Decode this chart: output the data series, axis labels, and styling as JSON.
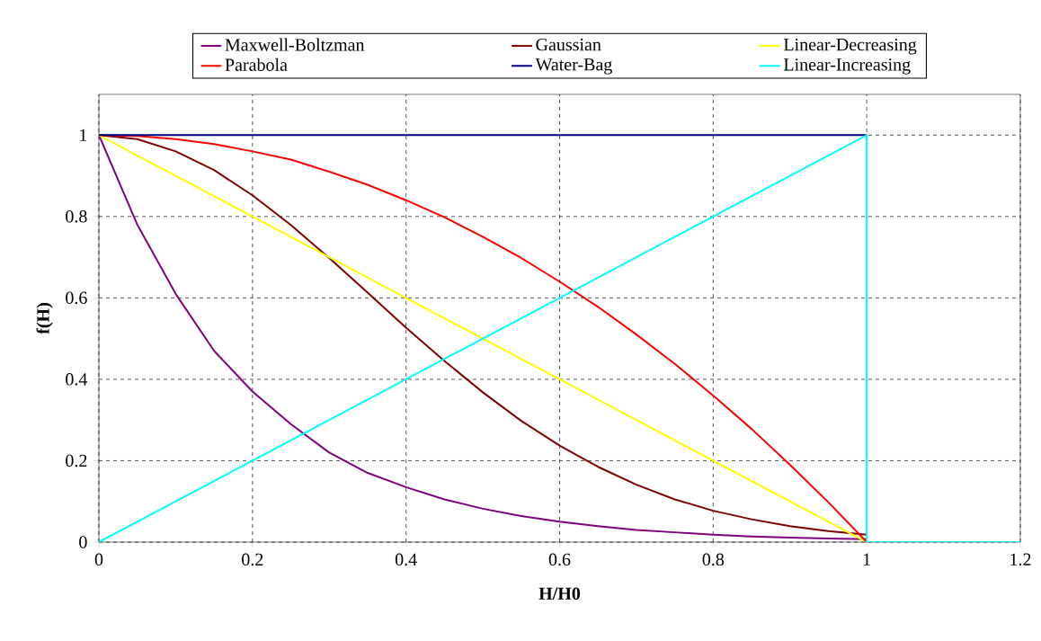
{
  "chart_data": {
    "type": "line",
    "xlabel": "H/H0",
    "ylabel": "f(H)",
    "xlim": [
      0,
      1.2
    ],
    "ylim": [
      0,
      1.1
    ],
    "xticks": [
      0,
      0.2,
      0.4,
      0.6,
      0.8,
      1,
      1.2
    ],
    "yticks": [
      0,
      0.2,
      0.4,
      0.6,
      0.8,
      1
    ],
    "grid": true,
    "legend": "top",
    "marker": "none",
    "line_style": "solid",
    "series": [
      {
        "name": "Maxwell-Boltzman",
        "color": "#800080",
        "x": [
          0,
          0.05,
          0.1,
          0.15,
          0.2,
          0.25,
          0.3,
          0.35,
          0.4,
          0.45,
          0.5,
          0.55,
          0.6,
          0.65,
          0.7,
          0.75,
          0.8,
          0.85,
          0.9,
          0.95,
          1
        ],
        "values": [
          1,
          0.78,
          0.61,
          0.47,
          0.37,
          0.29,
          0.22,
          0.17,
          0.135,
          0.105,
          0.082,
          0.064,
          0.05,
          0.039,
          0.03,
          0.024,
          0.018,
          0.014,
          0.011,
          0.009,
          0.007
        ]
      },
      {
        "name": "Gaussian",
        "color": "#800000",
        "x": [
          0,
          0.05,
          0.1,
          0.15,
          0.2,
          0.25,
          0.3,
          0.35,
          0.4,
          0.45,
          0.5,
          0.55,
          0.6,
          0.65,
          0.7,
          0.75,
          0.8,
          0.85,
          0.9,
          0.95,
          1
        ],
        "values": [
          1,
          0.99,
          0.96,
          0.914,
          0.852,
          0.779,
          0.698,
          0.613,
          0.527,
          0.445,
          0.368,
          0.298,
          0.237,
          0.185,
          0.141,
          0.105,
          0.077,
          0.056,
          0.039,
          0.027,
          0.018
        ]
      },
      {
        "name": "Linear-Decreasing",
        "color": "#ffff00",
        "x": [
          0,
          1
        ],
        "values": [
          1,
          0
        ]
      },
      {
        "name": "Parabola",
        "color": "#ff0000",
        "x": [
          0,
          0.05,
          0.1,
          0.15,
          0.2,
          0.25,
          0.3,
          0.35,
          0.4,
          0.45,
          0.5,
          0.55,
          0.6,
          0.65,
          0.7,
          0.75,
          0.8,
          0.85,
          0.9,
          0.95,
          1
        ],
        "values": [
          1,
          0.998,
          0.99,
          0.978,
          0.96,
          0.94,
          0.91,
          0.878,
          0.84,
          0.798,
          0.75,
          0.698,
          0.64,
          0.578,
          0.51,
          0.438,
          0.36,
          0.278,
          0.19,
          0.098,
          0
        ]
      },
      {
        "name": "Water-Bag",
        "color": "#000080",
        "x": [
          0,
          1
        ],
        "values": [
          1,
          1
        ]
      },
      {
        "name": "Linear-Increasing",
        "color": "#00ffff",
        "x": [
          0,
          1,
          1,
          1.2
        ],
        "values": [
          0,
          1,
          0,
          0
        ]
      }
    ]
  }
}
